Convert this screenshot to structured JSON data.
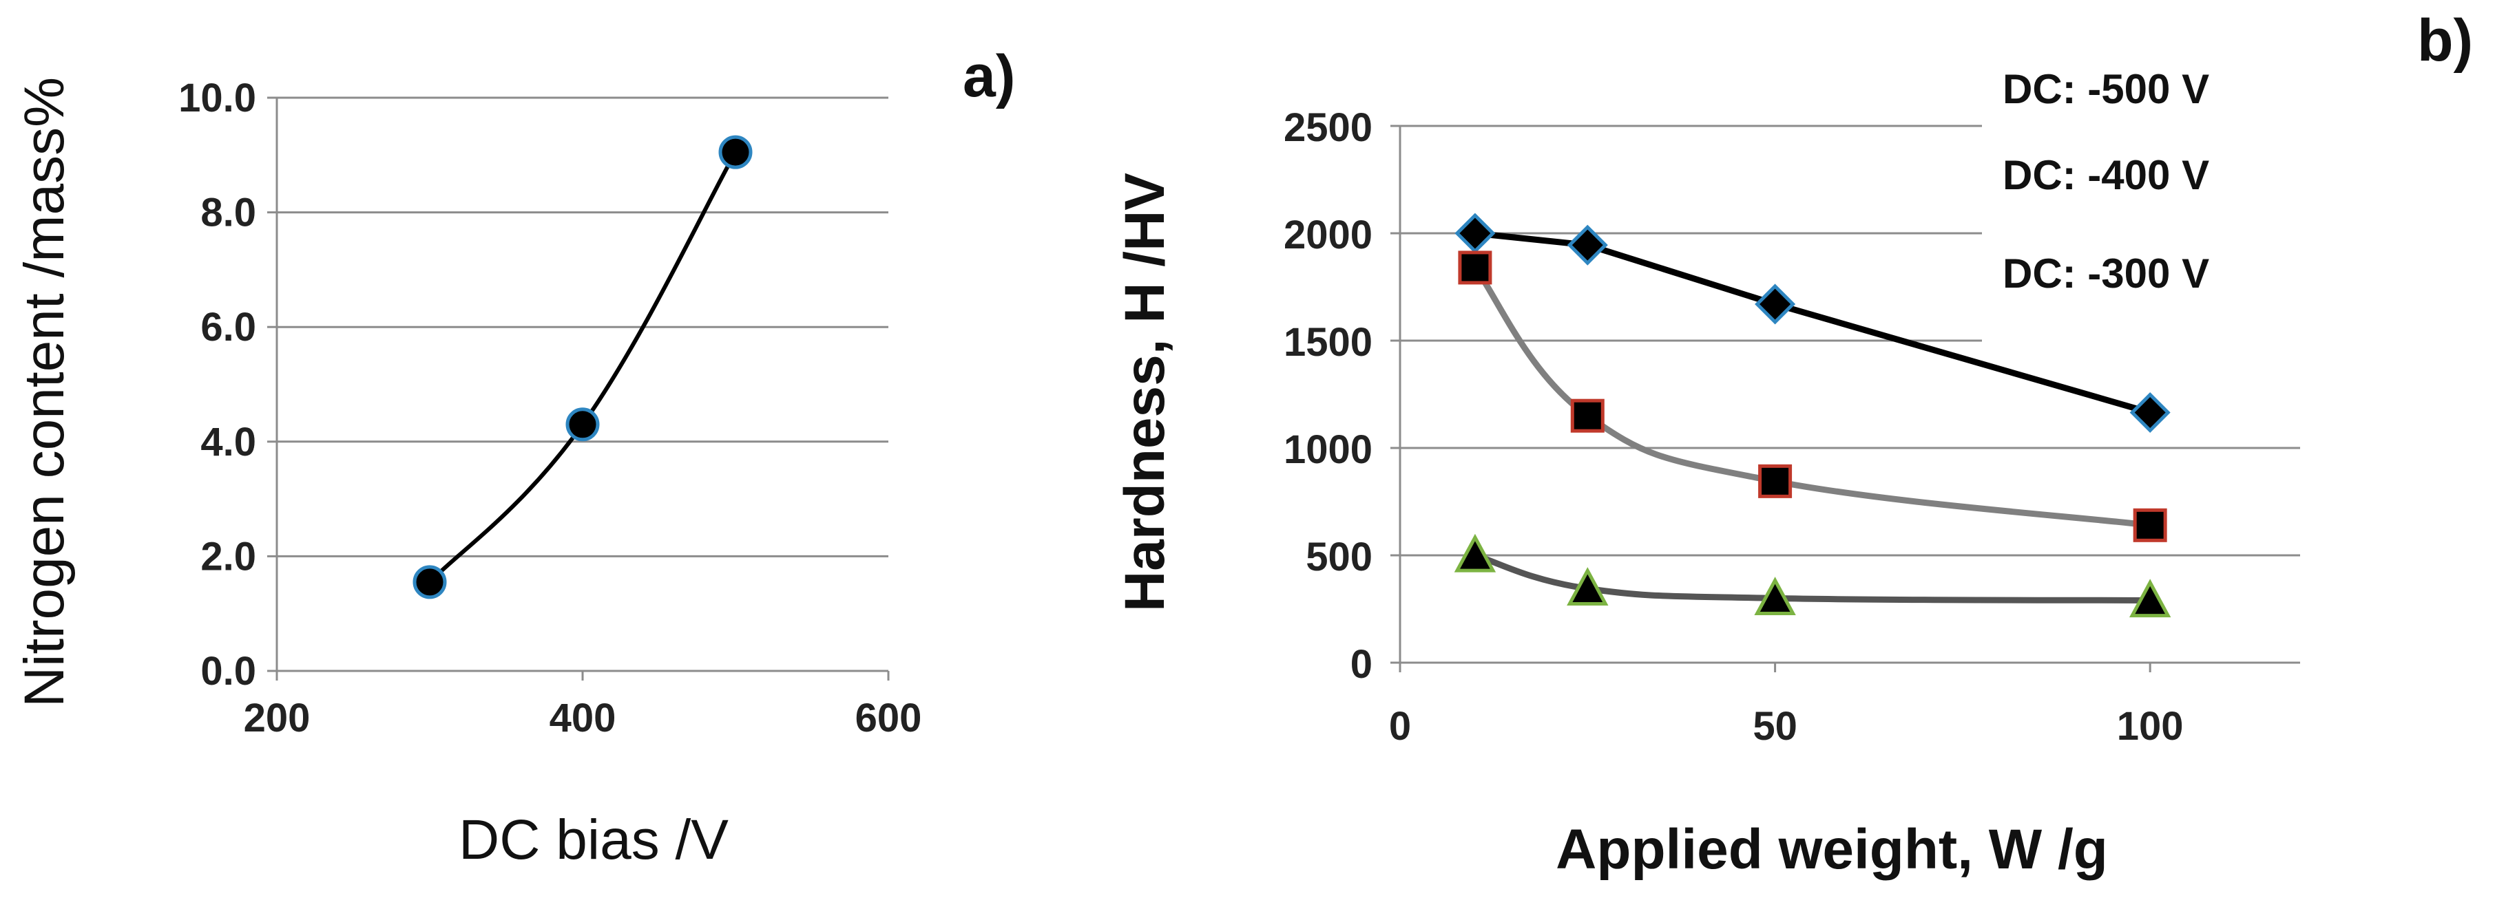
{
  "colors": {
    "grid": "#8c8c8c",
    "marker_fill": "#000000",
    "blue_edge": "#2e86c1",
    "red_edge": "#c0392b",
    "green_edge": "#7cb342",
    "line_black": "#000000",
    "line_gray": "#808080",
    "line_darkgray": "#555555"
  },
  "chart_data": [
    {
      "type": "line",
      "panel_label": "a)",
      "title": "",
      "xlabel": "DC bias /V",
      "ylabel": "Nitrogen content /mass%",
      "xlim": [
        200,
        600
      ],
      "ylim": [
        0,
        10
      ],
      "xticks": [
        "200",
        "400",
        "600"
      ],
      "yticks": [
        "0.0",
        "2.0",
        "4.0",
        "6.0",
        "8.0",
        "10.0"
      ],
      "grid": "horizontal",
      "series": [
        {
          "name": "Nitrogen content",
          "marker": "circle",
          "x": [
            300,
            400,
            500
          ],
          "y": [
            1.55,
            4.3,
            9.05
          ]
        }
      ]
    },
    {
      "type": "line",
      "panel_label": "b)",
      "title": "",
      "xlabel": "Applied weight, W /g",
      "ylabel": "Hardness, H /HV",
      "xlim": [
        0,
        120
      ],
      "ylim": [
        0,
        2500
      ],
      "xticks": [
        "0",
        "50",
        "100"
      ],
      "yticks": [
        "0",
        "500",
        "1000",
        "1500",
        "2000",
        "2500"
      ],
      "grid": "horizontal",
      "legend_position": "top-right",
      "series": [
        {
          "name": "DC: -500 V",
          "marker": "diamond",
          "x": [
            10,
            25,
            50,
            100
          ],
          "y": [
            2000,
            1945,
            1670,
            1165
          ]
        },
        {
          "name": "DC: -400 V",
          "marker": "square",
          "x": [
            10,
            25,
            50,
            100
          ],
          "y": [
            1840,
            1150,
            845,
            640
          ]
        },
        {
          "name": "DC: -300 V",
          "marker": "triangle",
          "x": [
            10,
            25,
            50,
            100
          ],
          "y": [
            500,
            345,
            300,
            290
          ]
        }
      ]
    }
  ]
}
